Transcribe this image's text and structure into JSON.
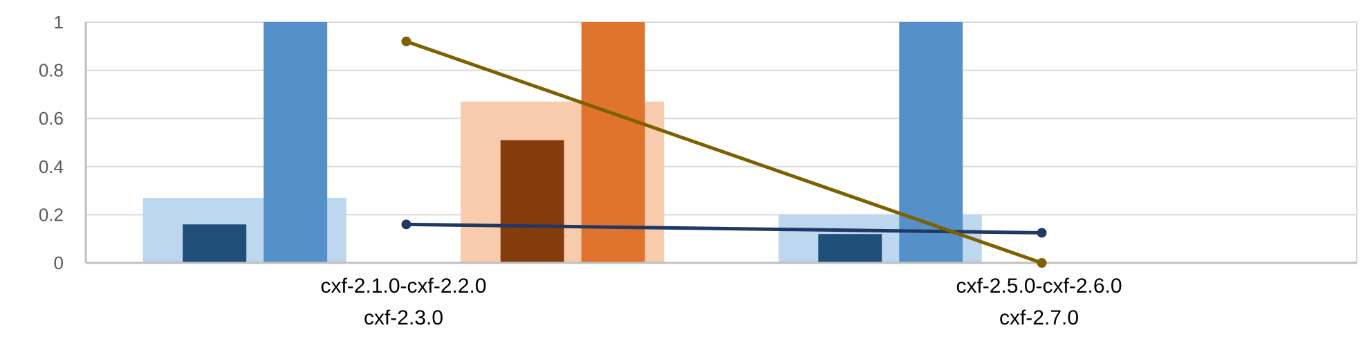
{
  "chart_data": {
    "type": "bar",
    "title": "",
    "xlabel": "",
    "ylabel": "",
    "ylim": [
      0,
      1
    ],
    "yticks": [
      "0",
      "0.2",
      "0.4",
      "0.6",
      "0.8",
      "1"
    ],
    "grid": true,
    "legend": "none",
    "categories": [
      {
        "line1": "cxf-2.1.0-cxf-2.2.0",
        "line2": "cxf-2.3.0"
      },
      {
        "line1": "cxf-2.5.0-cxf-2.6.0",
        "line2": "cxf-2.7.0"
      }
    ],
    "groups": [
      {
        "background": {
          "value": 0.27,
          "color": "#bdd7ee"
        },
        "bars": [
          {
            "value": 0.16,
            "color": "#1f4e79"
          },
          {
            "value": 1.0,
            "color": "#5591c8"
          }
        ]
      },
      {
        "background": {
          "value": 0.67,
          "color": "#f8cbad"
        },
        "bars": [
          {
            "value": 0.51,
            "color": "#843c0c"
          },
          {
            "value": 1.0,
            "color": "#e0742e"
          }
        ]
      },
      {
        "background": {
          "value": 0.2,
          "color": "#bdd7ee"
        },
        "bars": [
          {
            "value": 0.12,
            "color": "#1f4e79"
          },
          {
            "value": 1.0,
            "color": "#5591c8"
          }
        ]
      },
      {
        "background": {
          "value": 0,
          "color": "#f8cbad"
        },
        "bars": [
          {
            "value": 0,
            "color": "#843c0c"
          },
          {
            "value": 0,
            "color": "#e0742e"
          }
        ]
      }
    ],
    "series": [
      {
        "values": [
          0.16,
          0.125
        ],
        "color": "#203864"
      },
      {
        "values": [
          0.92,
          0.0
        ],
        "color": "#7f6000"
      }
    ]
  }
}
